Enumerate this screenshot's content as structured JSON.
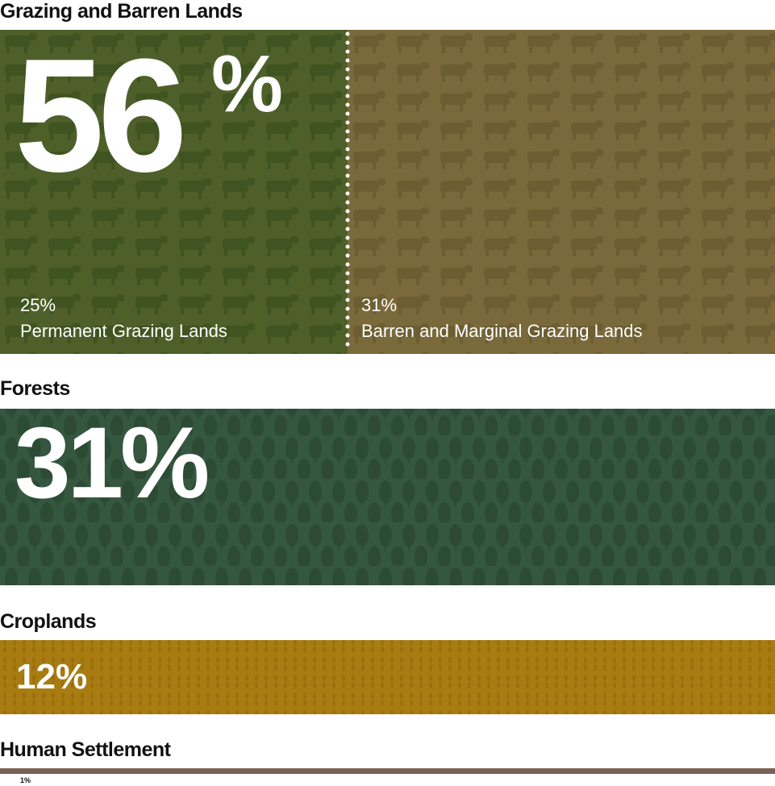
{
  "sections": [
    {
      "title": "Grazing and Barren Lands",
      "value": "56",
      "unit": "%",
      "parts": [
        {
          "value": "25%",
          "label": "Permanent Grazing Lands"
        },
        {
          "value": "31%",
          "label": "Barren and Marginal Grazing Lands"
        }
      ]
    },
    {
      "title": "Forests",
      "value": "31%"
    },
    {
      "title": "Croplands",
      "value": "12%"
    },
    {
      "title": "Human Settlement",
      "value": "1%"
    }
  ]
}
